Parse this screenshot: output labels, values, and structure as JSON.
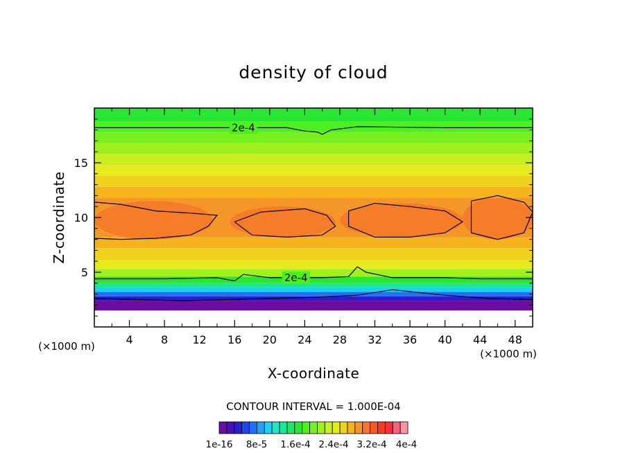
{
  "chart_data": {
    "type": "heatmap",
    "title": "density of cloud",
    "xlabel": "X-coordinate",
    "ylabel": "Z-coordinate",
    "x_unit": "(×1000 m)",
    "y_unit": "(×1000 m)",
    "xlim": [
      0,
      50
    ],
    "ylim": [
      0,
      20
    ],
    "x_ticks": [
      4,
      8,
      12,
      16,
      20,
      24,
      28,
      32,
      36,
      40,
      44,
      48
    ],
    "x_tick_labels": [
      "4",
      "8",
      "12",
      "16",
      "20",
      "24",
      "28",
      "32",
      "36",
      "40",
      "44",
      "48"
    ],
    "y_ticks": [
      5,
      10,
      15
    ],
    "y_tick_labels": [
      "5",
      "10",
      "15"
    ],
    "contour_interval_text": "CONTOUR INTERVAL = 1.000E-04",
    "contour_labels": [
      {
        "text": "2e-4",
        "x": 17.0,
        "z": 18.2
      },
      {
        "text": "2e-4",
        "x": 23.0,
        "z": 4.5
      }
    ],
    "colorbar": {
      "labels": [
        "1e-16",
        "8e-5",
        "1.6e-4",
        "2.4e-4",
        "3.2e-4",
        "4e-4"
      ],
      "levels": [
        0,
        4e-05,
        8e-05,
        0.00012,
        0.00016,
        0.0002,
        0.00024,
        0.00028,
        0.00032,
        0.00036,
        0.0004
      ],
      "colors": [
        "#6a0da0",
        "#4b0fb6",
        "#2a1ed2",
        "#1f46e8",
        "#1e73f4",
        "#1ea2f6",
        "#1ed0f0",
        "#1ee6c8",
        "#1ee696",
        "#1ee664",
        "#28e632",
        "#4bf01e",
        "#78f01e",
        "#a0f01e",
        "#c8f01e",
        "#e6eb1e",
        "#f0d21e",
        "#f5b41e",
        "#f59628",
        "#f57828",
        "#f55a1e",
        "#f53c1e",
        "#f5323c",
        "#f56478",
        "#f596a0"
      ]
    },
    "bands": [
      {
        "z0": 0.0,
        "z1": 1.5,
        "color": "#ffffff"
      },
      {
        "z0": 1.5,
        "z1": 2.4,
        "color": "#6a0da0"
      },
      {
        "z0": 2.4,
        "z1": 2.8,
        "color": "#2a1ed2"
      },
      {
        "z0": 2.8,
        "z1": 3.2,
        "color": "#1e73f4"
      },
      {
        "z0": 3.2,
        "z1": 3.6,
        "color": "#1ed0f0"
      },
      {
        "z0": 3.6,
        "z1": 4.0,
        "color": "#1ee696"
      },
      {
        "z0": 4.0,
        "z1": 4.6,
        "color": "#28e632"
      },
      {
        "z0": 4.6,
        "z1": 5.3,
        "color": "#a0f01e"
      },
      {
        "z0": 5.3,
        "z1": 6.1,
        "color": "#e6eb1e"
      },
      {
        "z0": 6.1,
        "z1": 7.2,
        "color": "#f0d21e"
      },
      {
        "z0": 7.2,
        "z1": 8.2,
        "color": "#f5b41e"
      },
      {
        "z0": 8.2,
        "z1": 11.8,
        "color": "#f59628"
      },
      {
        "z0": 11.8,
        "z1": 12.8,
        "color": "#f5b41e"
      },
      {
        "z0": 12.8,
        "z1": 13.8,
        "color": "#f0d21e"
      },
      {
        "z0": 13.8,
        "z1": 14.8,
        "color": "#e6eb1e"
      },
      {
        "z0": 14.8,
        "z1": 15.8,
        "color": "#c8f01e"
      },
      {
        "z0": 15.8,
        "z1": 16.8,
        "color": "#a0f01e"
      },
      {
        "z0": 16.8,
        "z1": 17.8,
        "color": "#78f01e"
      },
      {
        "z0": 17.8,
        "z1": 18.8,
        "color": "#4bf01e"
      },
      {
        "z0": 18.8,
        "z1": 20.0,
        "color": "#28e632"
      }
    ],
    "core_blobs": [
      {
        "x0": 0.0,
        "x1": 13.5,
        "z0": 8.0,
        "z1": 11.5,
        "color": "#f57828"
      },
      {
        "x0": 15.5,
        "x1": 27.5,
        "z0": 8.2,
        "z1": 11.0,
        "color": "#f57828"
      },
      {
        "x0": 28.0,
        "x1": 42.0,
        "z0": 8.2,
        "z1": 11.3,
        "color": "#f57828"
      },
      {
        "x0": 42.0,
        "x1": 50.0,
        "z0": 8.0,
        "z1": 11.8,
        "color": "#f57828"
      }
    ],
    "contour_lines": [
      {
        "name": "upper-2e-4",
        "points": [
          [
            0,
            18.2
          ],
          [
            10,
            18.2
          ],
          [
            22,
            18.2
          ],
          [
            24,
            17.9
          ],
          [
            25.5,
            17.8
          ],
          [
            26,
            17.6
          ],
          [
            27,
            18.0
          ],
          [
            30,
            18.3
          ],
          [
            40,
            18.2
          ],
          [
            50,
            18.2
          ]
        ]
      },
      {
        "name": "lower-2e-4",
        "points": [
          [
            0,
            4.4
          ],
          [
            8,
            4.4
          ],
          [
            14,
            4.5
          ],
          [
            16,
            4.2
          ],
          [
            17,
            4.8
          ],
          [
            20,
            4.5
          ],
          [
            26,
            4.5
          ],
          [
            29,
            4.6
          ],
          [
            30,
            5.5
          ],
          [
            31,
            5.0
          ],
          [
            34,
            4.5
          ],
          [
            40,
            4.5
          ],
          [
            44,
            4.4
          ],
          [
            50,
            4.4
          ]
        ]
      },
      {
        "name": "core-left",
        "points": [
          [
            0,
            11.4
          ],
          [
            3,
            11.2
          ],
          [
            7,
            10.6
          ],
          [
            11,
            10.4
          ],
          [
            14,
            10.2
          ],
          [
            13,
            9.2
          ],
          [
            11,
            8.4
          ],
          [
            7,
            8.1
          ],
          [
            3,
            8.0
          ],
          [
            0,
            8.1
          ]
        ]
      },
      {
        "name": "core-mid",
        "points": [
          [
            16,
            9.6
          ],
          [
            19,
            10.5
          ],
          [
            24,
            10.8
          ],
          [
            26.5,
            10.2
          ],
          [
            27.5,
            9.2
          ],
          [
            26,
            8.4
          ],
          [
            22,
            8.2
          ],
          [
            18,
            8.4
          ],
          [
            16,
            9.6
          ]
        ]
      },
      {
        "name": "core-right",
        "points": [
          [
            29,
            10.6
          ],
          [
            32,
            11.3
          ],
          [
            36,
            11.0
          ],
          [
            40,
            10.6
          ],
          [
            42,
            9.6
          ],
          [
            40,
            8.6
          ],
          [
            36,
            8.2
          ],
          [
            32,
            8.2
          ],
          [
            29,
            9.2
          ],
          [
            29,
            10.6
          ]
        ]
      },
      {
        "name": "core-far-right",
        "points": [
          [
            43,
            11.5
          ],
          [
            46,
            12.0
          ],
          [
            49,
            11.4
          ],
          [
            50,
            10.5
          ],
          [
            49,
            8.6
          ],
          [
            46,
            8.0
          ],
          [
            43,
            8.6
          ],
          [
            43,
            11.5
          ]
        ]
      },
      {
        "name": "base-edge",
        "points": [
          [
            0,
            2.6
          ],
          [
            5,
            2.5
          ],
          [
            10,
            2.4
          ],
          [
            15,
            2.5
          ],
          [
            20,
            2.6
          ],
          [
            25,
            2.7
          ],
          [
            30,
            2.9
          ],
          [
            34,
            3.4
          ],
          [
            40,
            2.9
          ],
          [
            45,
            2.6
          ],
          [
            50,
            2.5
          ]
        ]
      }
    ]
  }
}
